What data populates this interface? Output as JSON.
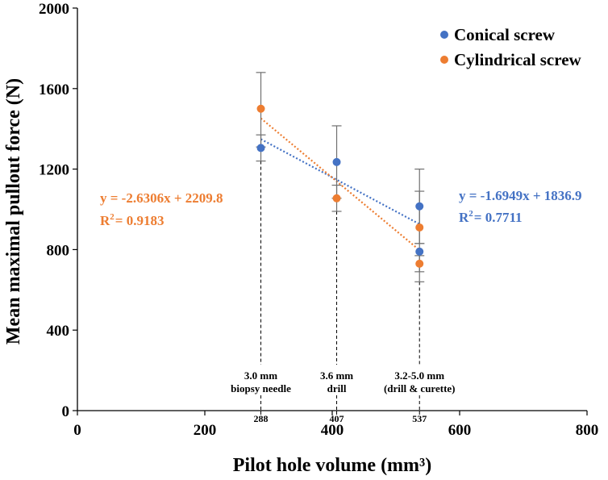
{
  "chart_data": {
    "type": "scatter",
    "xlabel": "Pilot hole volume (mm³)",
    "ylabel": "Mean maximal pullout force (N)",
    "xlim": [
      0,
      800
    ],
    "ylim": [
      0,
      2000
    ],
    "x_ticks": [
      0,
      200,
      400,
      600,
      800
    ],
    "y_ticks": [
      0,
      400,
      800,
      1200,
      1600,
      2000
    ],
    "x_minor_ticks": [
      288,
      407,
      537
    ],
    "legend_position": "top-right",
    "series": [
      {
        "name": "Conical screw",
        "color": "#4472C4",
        "points": [
          {
            "x": 288,
            "y": 1305,
            "err_low": 1240,
            "err_high": 1370
          },
          {
            "x": 407,
            "y": 1235,
            "err_low": 1055,
            "err_high": 1415
          },
          {
            "x": 537,
            "y": 1015,
            "err_low": 830,
            "err_high": 1200
          },
          {
            "x": 537,
            "y": 790,
            "err_low": 640,
            "err_high": 830
          }
        ],
        "trendline": {
          "slope": -1.6949,
          "intercept": 1836.9,
          "x_range": [
            288,
            537
          ]
        },
        "equation": "y = -1.6949x + 1836.9",
        "r2_label": "R",
        "r2_sup": "2",
        "r2_value": "= 0.7711"
      },
      {
        "name": "Cylindrical screw",
        "color": "#ED7D31",
        "points": [
          {
            "x": 288,
            "y": 1500,
            "err_low": 1310,
            "err_high": 1680
          },
          {
            "x": 407,
            "y": 1055,
            "err_low": 990,
            "err_high": 1120
          },
          {
            "x": 537,
            "y": 910,
            "err_low": 830,
            "err_high": 1090
          },
          {
            "x": 537,
            "y": 730,
            "err_low": 690,
            "err_high": 770
          }
        ],
        "trendline": {
          "slope": -2.6306,
          "intercept": 2209.8,
          "x_range": [
            288,
            537
          ]
        },
        "equation": "y = -2.6306x + 2209.8",
        "r2_label": "R",
        "r2_sup": "2",
        "r2_value": "= 0.9183"
      }
    ],
    "annotations": [
      {
        "x": 288,
        "line1": "3.0 mm",
        "line2": "biopsy needle"
      },
      {
        "x": 407,
        "line1": "3.6 mm",
        "line2": "drill"
      },
      {
        "x": 537,
        "line1": "3.2-5.0 mm",
        "line2": "(drill & curette)"
      }
    ]
  }
}
